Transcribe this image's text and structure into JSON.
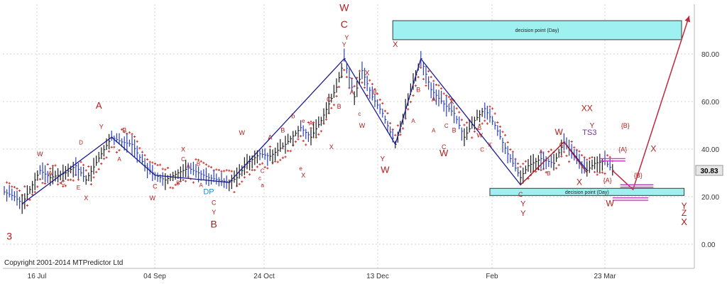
{
  "chart_data": {
    "type": "bar",
    "subtype": "ohlc-price-chart-with-elliott-wave-annotations",
    "x_ticks": [
      "16 Jul",
      "04 Sep",
      "24 Oct",
      "13 Dec",
      "Feb",
      "23 Mar"
    ],
    "y_ticks": [
      "0.00",
      "20.00",
      "40.00",
      "60.00",
      "80.00"
    ],
    "ylim": [
      -8,
      98
    ],
    "grid": true,
    "last_price": "30.83",
    "copyright": "Copyright 2001-2014 MTPredictor Ltd",
    "price_path": [
      [
        0,
        22
      ],
      [
        4,
        20
      ],
      [
        7,
        17
      ],
      [
        10,
        23
      ],
      [
        14,
        31
      ],
      [
        18,
        28
      ],
      [
        24,
        30
      ],
      [
        28,
        33
      ],
      [
        32,
        27
      ],
      [
        38,
        38
      ],
      [
        42,
        45
      ],
      [
        46,
        43
      ],
      [
        50,
        42
      ],
      [
        55,
        33
      ],
      [
        59,
        29
      ],
      [
        63,
        27
      ],
      [
        68,
        30
      ],
      [
        72,
        32
      ],
      [
        76,
        30
      ],
      [
        80,
        28
      ],
      [
        84,
        27
      ],
      [
        88,
        26
      ],
      [
        91,
        28
      ],
      [
        95,
        34
      ],
      [
        100,
        38
      ],
      [
        104,
        37
      ],
      [
        110,
        42
      ],
      [
        116,
        49
      ],
      [
        120,
        45
      ],
      [
        124,
        52
      ],
      [
        130,
        66
      ],
      [
        133,
        78
      ],
      [
        137,
        62
      ],
      [
        140,
        73
      ],
      [
        144,
        62
      ],
      [
        148,
        55
      ],
      [
        153,
        42
      ],
      [
        158,
        61
      ],
      [
        163,
        78
      ],
      [
        167,
        65
      ],
      [
        172,
        59
      ],
      [
        176,
        55
      ],
      [
        180,
        45
      ],
      [
        184,
        52
      ],
      [
        188,
        57
      ],
      [
        192,
        50
      ],
      [
        197,
        38
      ],
      [
        202,
        28
      ],
      [
        205,
        33
      ],
      [
        210,
        36
      ],
      [
        215,
        34
      ],
      [
        219,
        43
      ],
      [
        223,
        37
      ],
      [
        228,
        31
      ],
      [
        231,
        34
      ],
      [
        235,
        35
      ],
      [
        238,
        31
      ]
    ],
    "wave_lines": [
      {
        "color": "#1c1c8e",
        "points": [
          [
            7,
            17
          ],
          [
            42,
            45
          ],
          [
            59,
            29
          ],
          [
            88,
            26
          ],
          [
            133,
            78
          ],
          [
            153,
            42
          ],
          [
            163,
            78
          ],
          [
            202,
            25
          ],
          [
            219,
            43
          ],
          [
            228,
            31
          ]
        ]
      },
      {
        "color": "#b02020",
        "points": [
          [
            202,
            25
          ],
          [
            219,
            43
          ],
          [
            228,
            30
          ]
        ]
      }
    ],
    "projection": {
      "color": "#c0283c",
      "points": [
        [
          238,
          31
        ],
        [
          246,
          23
        ],
        [
          268,
          96
        ]
      ]
    },
    "decision_boxes": [
      {
        "label": "decision point (Day)",
        "t1": 152,
        "t2": 265,
        "y_low": 86,
        "y_high": 94
      },
      {
        "label": "decision point (Day)",
        "t1": 190,
        "t2": 266,
        "y_low": 20.5,
        "y_high": 23.5
      }
    ],
    "target_lines": [
      {
        "t1": 233,
        "t2": 243,
        "y": 36
      },
      {
        "t1": 233,
        "t2": 243,
        "y": 35
      },
      {
        "t1": 241,
        "t2": 254,
        "y": 25
      },
      {
        "t1": 241,
        "t2": 254,
        "y": 24
      },
      {
        "t1": 238,
        "t2": 252,
        "y": 19.5
      },
      {
        "t1": 238,
        "t2": 252,
        "y": 18.5
      }
    ],
    "wave_labels": [
      {
        "text": "3",
        "t": 2,
        "y": 2,
        "size": 14
      },
      {
        "text": "A",
        "t": 37,
        "y": 57,
        "size": 13
      },
      {
        "text": "Y",
        "t": 38,
        "y": 48.5,
        "size": 9
      },
      {
        "text": "B",
        "t": 47,
        "y": 47,
        "size": 9
      },
      {
        "text": "W",
        "t": 14,
        "y": 37,
        "size": 9
      },
      {
        "text": "A",
        "t": 18,
        "y": 29,
        "size": 9
      },
      {
        "text": "C",
        "t": 23,
        "y": 25,
        "size": 9
      },
      {
        "text": "E",
        "t": 29,
        "y": 23,
        "size": 8
      },
      {
        "text": "X",
        "t": 32,
        "y": 18.5,
        "size": 9
      },
      {
        "text": "D",
        "t": 30,
        "y": 42,
        "size": 8
      },
      {
        "text": "A",
        "t": 45,
        "y": 35,
        "size": 8
      },
      {
        "text": "C",
        "t": 59,
        "y": 23.5,
        "size": 9
      },
      {
        "text": "W",
        "t": 58,
        "y": 18.5,
        "size": 9
      },
      {
        "text": "X",
        "t": 70,
        "y": 39,
        "size": 9
      },
      {
        "text": "C",
        "t": 70,
        "y": 35,
        "size": 8
      },
      {
        "text": "B",
        "t": 76,
        "y": 33,
        "size": 8
      },
      {
        "text": "A",
        "t": 72,
        "y": 32,
        "size": 8
      },
      {
        "text": "B",
        "t": 68,
        "y": 25,
        "size": 8
      },
      {
        "text": "A",
        "t": 77,
        "y": 24,
        "size": 8
      },
      {
        "text": "DP",
        "t": 80,
        "y": 21,
        "size": 11,
        "color": "#1a8fcf"
      },
      {
        "text": "C",
        "t": 82,
        "y": 16.5,
        "size": 9
      },
      {
        "text": "Y",
        "t": 82,
        "y": 12.5,
        "size": 9
      },
      {
        "text": "B",
        "t": 82,
        "y": 7,
        "size": 14
      },
      {
        "text": "W",
        "t": 93,
        "y": 46,
        "size": 9
      },
      {
        "text": "A",
        "t": 104,
        "y": 44,
        "size": 9
      },
      {
        "text": "B",
        "t": 109,
        "y": 47,
        "size": 9
      },
      {
        "text": "C",
        "t": 101,
        "y": 30,
        "size": 8
      },
      {
        "text": "c",
        "t": 100,
        "y": 27,
        "size": 8
      },
      {
        "text": "a",
        "t": 101,
        "y": 24,
        "size": 8
      },
      {
        "text": "b",
        "t": 113,
        "y": 53,
        "size": 9
      },
      {
        "text": "e",
        "t": 117,
        "y": 51,
        "size": 8
      },
      {
        "text": "A",
        "t": 120,
        "y": 50,
        "size": 9
      },
      {
        "text": "X",
        "t": 117,
        "y": 28,
        "size": 9
      },
      {
        "text": "e",
        "t": 116,
        "y": 31,
        "size": 8
      },
      {
        "text": "X",
        "t": 128,
        "y": 40,
        "size": 9
      },
      {
        "text": "C",
        "t": 127,
        "y": 60,
        "size": 9
      },
      {
        "text": "B",
        "t": 131,
        "y": 57,
        "size": 9
      },
      {
        "text": "A",
        "t": 136,
        "y": 63,
        "size": 9
      },
      {
        "text": "W",
        "t": 133,
        "y": 98,
        "size": 14
      },
      {
        "text": "C",
        "t": 133,
        "y": 91,
        "size": 14
      },
      {
        "text": "Y",
        "t": 134,
        "y": 86,
        "size": 9
      },
      {
        "text": "Y",
        "t": 133,
        "y": 83,
        "size": 9
      },
      {
        "text": "X",
        "t": 142,
        "y": 71,
        "size": 10
      },
      {
        "text": "c",
        "t": 139,
        "y": 54,
        "size": 8
      },
      {
        "text": "W",
        "t": 140,
        "y": 49,
        "size": 9
      },
      {
        "text": "B",
        "t": 145,
        "y": 63,
        "size": 9
      },
      {
        "text": "X",
        "t": 153,
        "y": 83,
        "size": 11
      },
      {
        "text": "B",
        "t": 162,
        "y": 64,
        "size": 9
      },
      {
        "text": "A",
        "t": 168,
        "y": 60,
        "size": 9
      },
      {
        "text": "Y",
        "t": 148,
        "y": 35,
        "size": 10
      },
      {
        "text": "W",
        "t": 149,
        "y": 30,
        "size": 13
      },
      {
        "text": "A",
        "t": 160,
        "y": 51,
        "size": 8
      },
      {
        "text": "A",
        "t": 168,
        "y": 47,
        "size": 8
      },
      {
        "text": "X",
        "t": 175,
        "y": 59,
        "size": 11
      },
      {
        "text": "C",
        "t": 173,
        "y": 49,
        "size": 8
      },
      {
        "text": "B",
        "t": 176,
        "y": 47,
        "size": 9
      },
      {
        "text": "C",
        "t": 172,
        "y": 40,
        "size": 9
      },
      {
        "text": "W",
        "t": 172,
        "y": 37,
        "size": 13
      },
      {
        "text": "W",
        "t": 186,
        "y": 45,
        "size": 9
      },
      {
        "text": "B",
        "t": 186,
        "y": 48,
        "size": 8
      },
      {
        "text": "C",
        "t": 187,
        "y": 39,
        "size": 8
      },
      {
        "text": "X",
        "t": 190,
        "y": 41,
        "size": 8
      },
      {
        "text": "C",
        "t": 202,
        "y": 20,
        "size": 9
      },
      {
        "text": "Y",
        "t": 203,
        "y": 16,
        "size": 11
      },
      {
        "text": "Y",
        "t": 203,
        "y": 12,
        "size": 11
      },
      {
        "text": "A",
        "t": 210,
        "y": 38,
        "size": 8
      },
      {
        "text": "B",
        "t": 213,
        "y": 29,
        "size": 8
      },
      {
        "text": "W",
        "t": 217,
        "y": 46,
        "size": 12
      },
      {
        "text": "C",
        "t": 218,
        "y": 41,
        "size": 8
      },
      {
        "text": "XX",
        "t": 228,
        "y": 56,
        "size": 12
      },
      {
        "text": "Y",
        "t": 230,
        "y": 49,
        "size": 10
      },
      {
        "text": "TS3",
        "t": 229,
        "y": 46,
        "size": 11,
        "color": "#7a2fa0"
      },
      {
        "text": "X",
        "t": 225,
        "y": 25,
        "size": 12
      },
      {
        "text": "{B}",
        "t": 243,
        "y": 49,
        "size": 9
      },
      {
        "text": "{A}",
        "t": 242,
        "y": 39,
        "size": 9
      },
      {
        "text": "{B}",
        "t": 248,
        "y": 28,
        "size": 9
      },
      {
        "text": "{A}",
        "t": 236,
        "y": 26,
        "size": 9
      },
      {
        "text": "X",
        "t": 254,
        "y": 39,
        "size": 12
      },
      {
        "text": "W",
        "t": 237,
        "y": 16,
        "size": 12
      },
      {
        "text": "Y",
        "t": 266,
        "y": 15,
        "size": 12
      },
      {
        "text": "Z",
        "t": 266,
        "y": 12,
        "size": 12
      },
      {
        "text": "X",
        "t": 266,
        "y": 8,
        "size": 13
      }
    ]
  }
}
